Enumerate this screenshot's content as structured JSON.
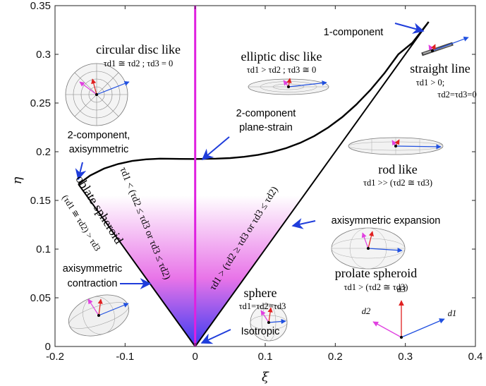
{
  "chart_data": {
    "type": "line",
    "xlabel": "ξ",
    "ylabel": "η",
    "xlim": [
      -0.2,
      0.4
    ],
    "ylim": [
      0,
      0.35
    ],
    "x_ticks": [
      "-0.2",
      "-0.1",
      "0",
      "0.1",
      "0.2",
      "0.3",
      "0.4"
    ],
    "y_ticks": [
      "0",
      "0.05",
      "0.1",
      "0.15",
      "0.2",
      "0.25",
      "0.3",
      "0.35"
    ],
    "grid": false,
    "lumley_triangle": {
      "left_edge": [
        [
          -0.1667,
          0.1667
        ],
        [
          0,
          0
        ]
      ],
      "right_edge": [
        [
          0,
          0
        ],
        [
          0.3333,
          0.3333
        ]
      ],
      "two_component_curve": [
        [
          -0.1667,
          0.1667
        ],
        [
          -0.15,
          0.1755
        ],
        [
          -0.13,
          0.1827
        ],
        [
          -0.11,
          0.1874
        ],
        [
          -0.09,
          0.1905
        ],
        [
          -0.07,
          0.1922
        ],
        [
          -0.05,
          0.1929
        ],
        [
          -0.03,
          0.1927
        ],
        [
          0,
          0.1925
        ],
        [
          0.03,
          0.1929
        ],
        [
          0.05,
          0.1935
        ],
        [
          0.07,
          0.1948
        ],
        [
          0.09,
          0.1968
        ],
        [
          0.11,
          0.1997
        ],
        [
          0.13,
          0.2037
        ],
        [
          0.15,
          0.2091
        ],
        [
          0.17,
          0.2161
        ],
        [
          0.19,
          0.2249
        ],
        [
          0.21,
          0.2356
        ],
        [
          0.23,
          0.2484
        ],
        [
          0.25,
          0.2633
        ],
        [
          0.27,
          0.2805
        ],
        [
          0.29,
          0.3
        ],
        [
          0.31,
          0.3119
        ],
        [
          0.3333,
          0.3333
        ]
      ],
      "plane_strain_line": [
        [
          0,
          0
        ],
        [
          0,
          0.35
        ]
      ]
    },
    "colors": {
      "curve": "#000000",
      "plane_strain": "#e020e0",
      "gradient_top": "#ffffff",
      "gradient_mid": "#e874e8",
      "gradient_bottom": "#3a3cf2",
      "arrow": "#1f3ddb",
      "axis_red": "#e02020",
      "axis_magenta": "#e040e0",
      "axis_blue": "#2050e0"
    },
    "annotations": {
      "circular_disc": {
        "title": "circular disc like",
        "cond": "τd1 ≅ τd2 ; τd3 = 0"
      },
      "elliptic_disc": {
        "title": "elliptic disc like",
        "cond": "τd1 > τd2 ; τd3 ≅ 0"
      },
      "one_component": "1-component",
      "straight_line": {
        "title": "straight line",
        "cond1": "τd1 > 0;",
        "cond2": "τd2=τd3=0"
      },
      "two_comp_plane_strain": {
        "line1": "2-component",
        "line2": "plane-strain"
      },
      "two_comp_axisym": {
        "line1": "2-component,",
        "line2": "axisymmetric"
      },
      "rod_like": {
        "title": "rod like",
        "cond": "τd1 >> (τd2 ≅ τd3)"
      },
      "oblate": {
        "title": "oblate spheroid",
        "cond": "(τd1 ≅ τd2) > τd3"
      },
      "left_region": "τd1 < (τd2 ≤ τd3 or τd3 ≤ τd2)",
      "right_region": "τd1 > (τd2 ≥ τd3 or τd3 ≤ τd2)",
      "axisym_expansion": "axisymmetric expansion",
      "prolate": {
        "title": "prolate spheroid",
        "cond": "τd1 > (τd2 ≅ τd3)"
      },
      "axisym_contraction": {
        "line1": "axisymmetric",
        "line2": "contraction"
      },
      "sphere": {
        "title": "sphere",
        "cond": "τd1=τd2=τd3"
      },
      "isotropic": "Isotropic",
      "axes_legend": {
        "d1": "d1",
        "d2": "d2",
        "d3": "d3"
      }
    }
  }
}
